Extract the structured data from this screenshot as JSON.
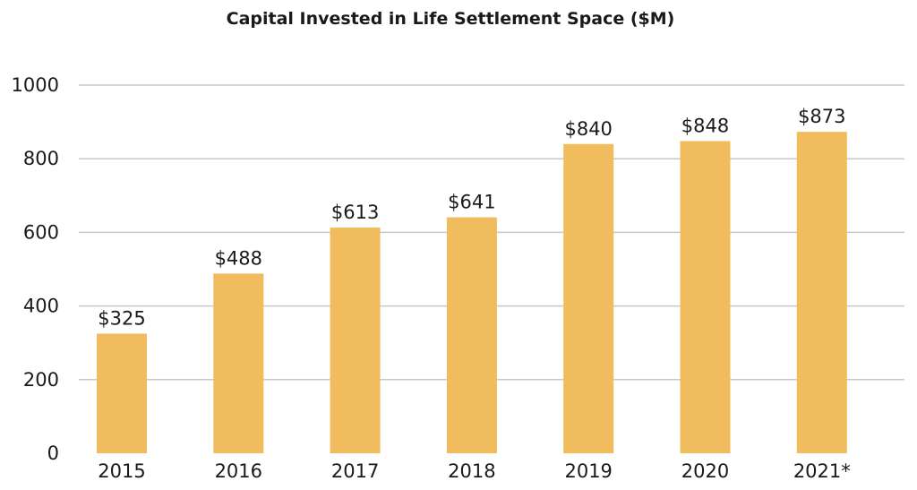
{
  "chart_data": {
    "type": "bar",
    "title": "Capital Invested in Life Settlement Space ($M)",
    "xlabel": "",
    "ylabel": "",
    "categories": [
      "2015",
      "2016",
      "2017",
      "2018",
      "2019",
      "2020",
      "2021*"
    ],
    "values": [
      325,
      488,
      613,
      641,
      840,
      848,
      873
    ],
    "data_labels": [
      "$325",
      "$488",
      "$613",
      "$641",
      "$840",
      "$848",
      "$873"
    ],
    "ylim": [
      0,
      1000
    ],
    "yticks": [
      "0",
      "200",
      "400",
      "600",
      "800",
      "1000"
    ],
    "grid": true,
    "bar_color": "#F0BC5E"
  }
}
